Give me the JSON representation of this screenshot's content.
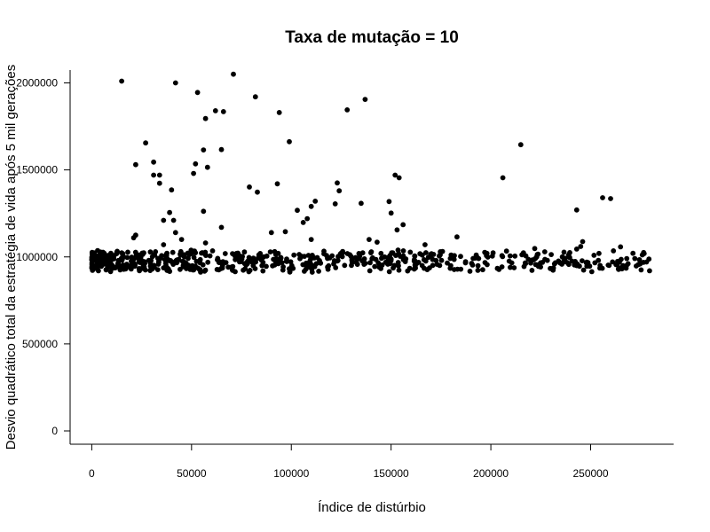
{
  "chart_data": {
    "type": "scatter",
    "title": "Taxa de mutação = 10",
    "xlabel": "Índice de distúrbio",
    "ylabel": "Desvio quadrático total da estratégia de vida após 5 mil gerações",
    "xlim": [
      -12000,
      290000
    ],
    "ylim": [
      -80000,
      2100000
    ],
    "xticks": [
      0,
      50000,
      100000,
      150000,
      200000,
      250000
    ],
    "xtick_labels": [
      "0",
      "50000",
      "100000",
      "150000",
      "200000",
      "250000"
    ],
    "yticks": [
      0,
      500000,
      1000000,
      1500000,
      2000000
    ],
    "ytick_labels": [
      "0",
      "500000",
      "1000000",
      "1500000",
      "2000000"
    ],
    "grid": false,
    "marker_color": "#000000",
    "outliers": [
      [
        15000,
        2010000
      ],
      [
        42000,
        2000000
      ],
      [
        71000,
        2050000
      ],
      [
        53000,
        1945000
      ],
      [
        82000,
        1920000
      ],
      [
        137000,
        1905000
      ],
      [
        62000,
        1840000
      ],
      [
        66000,
        1835000
      ],
      [
        128000,
        1845000
      ],
      [
        94000,
        1830000
      ],
      [
        57000,
        1795000
      ],
      [
        99000,
        1662000
      ],
      [
        27000,
        1655000
      ],
      [
        215000,
        1645000
      ],
      [
        56000,
        1615000
      ],
      [
        65000,
        1617000
      ],
      [
        31000,
        1545000
      ],
      [
        52000,
        1535000
      ],
      [
        22000,
        1530000
      ],
      [
        58000,
        1515000
      ],
      [
        51000,
        1480000
      ],
      [
        31000,
        1470000
      ],
      [
        34000,
        1470000
      ],
      [
        152000,
        1470000
      ],
      [
        154000,
        1455000
      ],
      [
        206000,
        1455000
      ],
      [
        123000,
        1425000
      ],
      [
        34000,
        1423000
      ],
      [
        93000,
        1420000
      ],
      [
        79000,
        1402000
      ],
      [
        40000,
        1385000
      ],
      [
        124000,
        1380000
      ],
      [
        83000,
        1372000
      ],
      [
        112000,
        1320000
      ],
      [
        149000,
        1318000
      ],
      [
        122000,
        1305000
      ],
      [
        135000,
        1308000
      ],
      [
        256000,
        1340000
      ],
      [
        260000,
        1335000
      ],
      [
        110000,
        1290000
      ],
      [
        103000,
        1268000
      ],
      [
        56000,
        1262000
      ],
      [
        150000,
        1252000
      ],
      [
        243000,
        1270000
      ],
      [
        39000,
        1255000
      ],
      [
        36000,
        1210000
      ],
      [
        41000,
        1210000
      ],
      [
        108000,
        1220000
      ],
      [
        106000,
        1198000
      ],
      [
        156000,
        1185000
      ],
      [
        65000,
        1170000
      ],
      [
        90000,
        1140000
      ],
      [
        97000,
        1145000
      ],
      [
        153000,
        1155000
      ],
      [
        42000,
        1140000
      ],
      [
        22000,
        1125000
      ],
      [
        21000,
        1110000
      ],
      [
        183000,
        1115000
      ],
      [
        45000,
        1100000
      ],
      [
        110000,
        1100000
      ],
      [
        139000,
        1100000
      ],
      [
        36000,
        1070000
      ],
      [
        57000,
        1080000
      ],
      [
        143000,
        1085000
      ],
      [
        167000,
        1070000
      ],
      [
        246000,
        1088000
      ],
      [
        245000,
        1060000
      ],
      [
        265000,
        1058000
      ],
      [
        222000,
        1048000
      ],
      [
        243000,
        1045000
      ]
    ]
  }
}
